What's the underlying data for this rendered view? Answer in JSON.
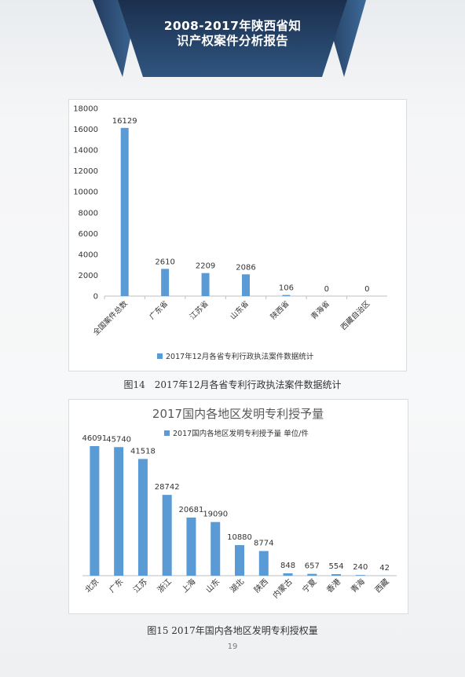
{
  "report": {
    "title_line1": "2008-2017年陕西省知",
    "title_line2": "识产权案件分析报告"
  },
  "figures": [
    {
      "caption": "图14　2017年12月各省专利行政执法案件数据统计"
    },
    {
      "caption": "图15 2017年国内各地区发明专利授权量"
    }
  ],
  "page_number": "19",
  "colors": {
    "bar": "#5b9bd5",
    "banner_dark": "#1f3554",
    "banner_mid": "#2e4d78"
  },
  "chart_data": [
    {
      "type": "bar",
      "title": "",
      "categories": [
        "全国案件总数",
        "广东省",
        "江苏省",
        "山东省",
        "陕西省",
        "青海省",
        "西藏自治区"
      ],
      "series": [
        {
          "name": "2017年12月各省专利行政执法案件数据统计",
          "values": [
            16129,
            2610,
            2209,
            2086,
            106,
            0,
            0
          ]
        }
      ],
      "ylim": [
        0,
        18000
      ],
      "yticks": [
        0,
        2000,
        4000,
        6000,
        8000,
        10000,
        12000,
        14000,
        16000,
        18000
      ],
      "grid": false,
      "legend": "bottom",
      "data_labels": true
    },
    {
      "type": "bar",
      "title": "2017国内各地区发明专利授予量",
      "categories": [
        "北京",
        "广东",
        "江苏",
        "浙江",
        "上海",
        "山东",
        "湖北",
        "陕西",
        "内蒙古",
        "宁夏",
        "香港",
        "青海",
        "西藏"
      ],
      "series": [
        {
          "name": "2017国内各地区发明专利授予量 单位/件",
          "values": [
            46091,
            45740,
            41518,
            28742,
            20681,
            19090,
            10880,
            8774,
            848,
            657,
            554,
            240,
            42
          ]
        }
      ],
      "ylim": [
        0,
        50000
      ],
      "grid": false,
      "legend": "top",
      "data_labels": true
    }
  ]
}
